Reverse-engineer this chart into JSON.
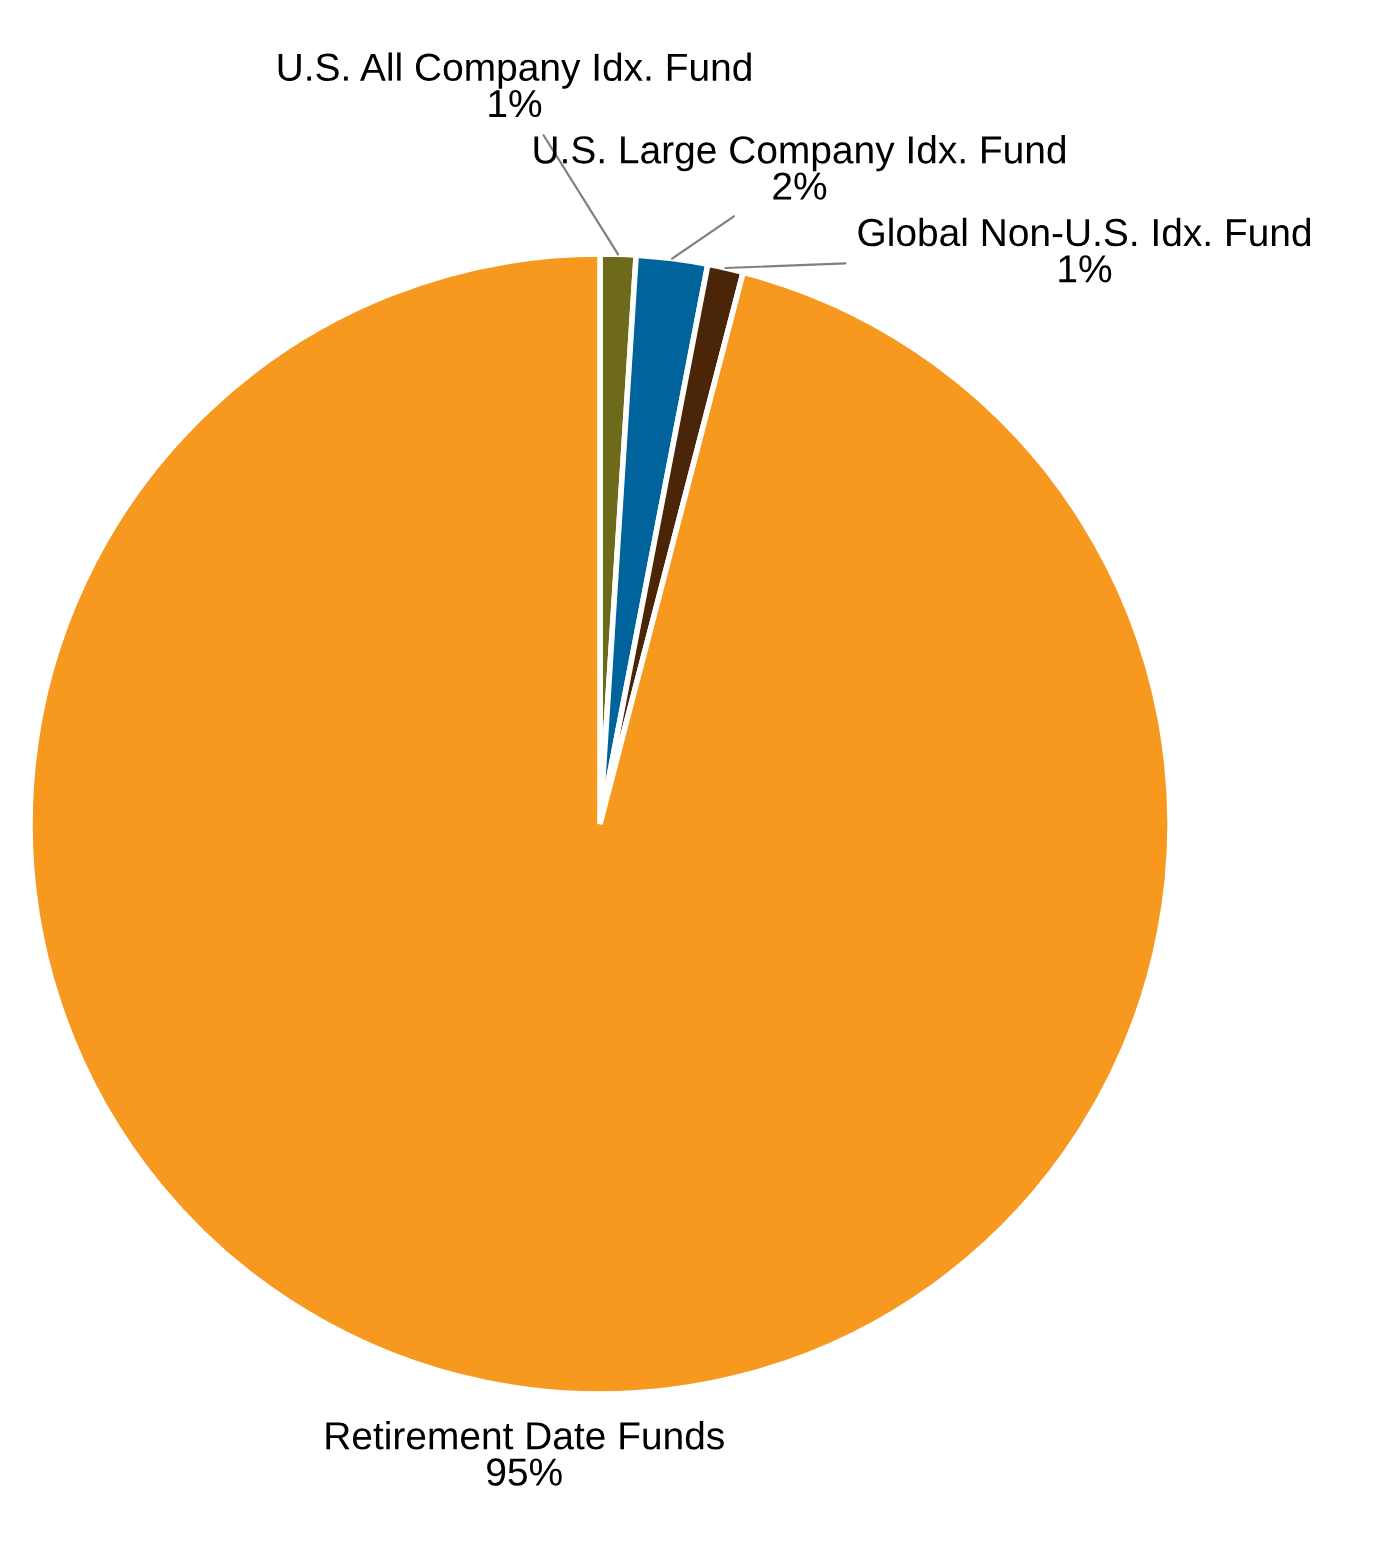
{
  "chart_data": {
    "type": "pie",
    "categories": [
      "U.S. All Company Idx. Fund",
      "U.S. Large Company Idx. Fund",
      "Global Non-U.S. Idx. Fund",
      "Retirement Date Funds"
    ],
    "values": [
      1,
      2,
      1,
      95
    ],
    "value_labels": [
      "1%",
      "2%",
      "1%",
      "95%"
    ],
    "colors": [
      "#6e6a1c",
      "#00639c",
      "#4a2508",
      "#f7981f"
    ]
  }
}
